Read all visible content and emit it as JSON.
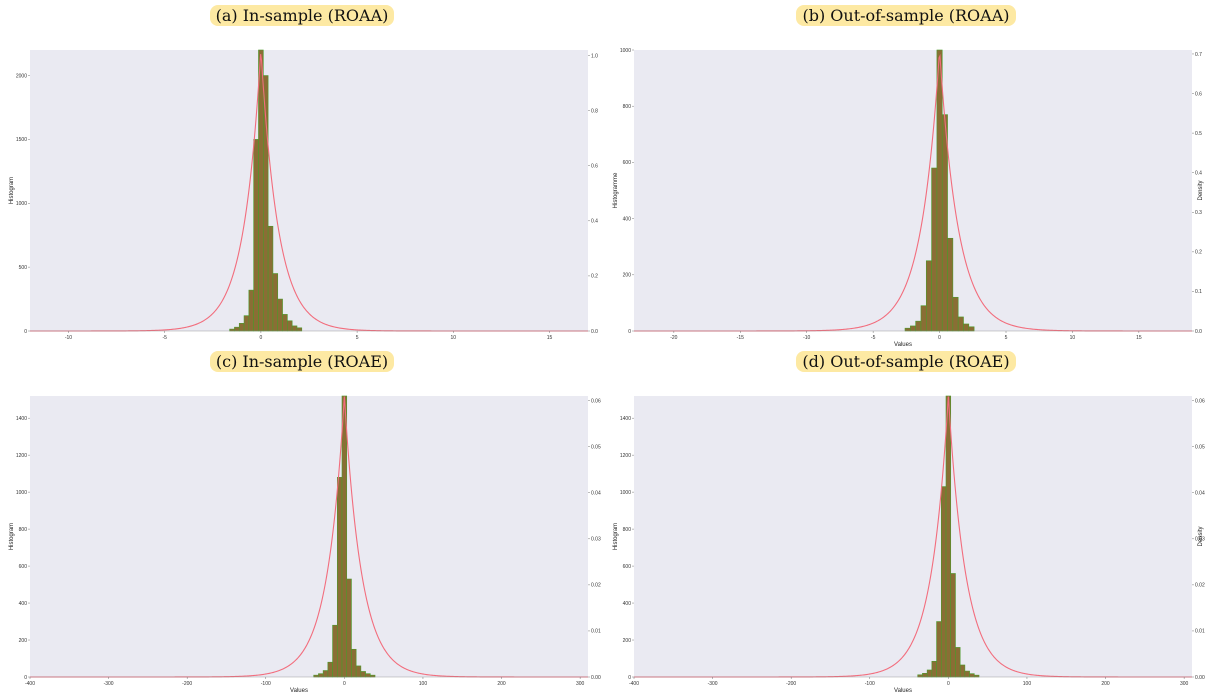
{
  "captions": [
    "(a) In-sample (ROAA)",
    "(b) Out-of-sample (ROAA)",
    "(c) In-sample (ROAE)",
    "(d) Out-of-sample (ROAE)"
  ],
  "colors": {
    "plot_bg": "#eaeaf2",
    "bar_fill": "#8a6e35",
    "bar_edge": "#4c9a2a",
    "kde": "#f26d7d"
  },
  "chart_data": [
    {
      "type": "bar",
      "title": "(a) In-sample (ROAA)",
      "xlabel": "",
      "ylabel": "Histogram",
      "y2label": "",
      "xlim": [
        -12,
        17
      ],
      "ylim": [
        0,
        2200
      ],
      "y2lim": [
        0,
        1.02
      ],
      "xticks": [
        -10,
        -5,
        0,
        5,
        10,
        15
      ],
      "yticks": [
        0,
        500,
        1000,
        1500,
        2000
      ],
      "y2ticks": [
        "0.0",
        "0.2",
        "0.4",
        "0.6",
        "0.8",
        "1.0"
      ],
      "center": 0,
      "bin_width": 0.25,
      "tail_scale": 0.9,
      "bins": [
        [
          -1.5,
          15
        ],
        [
          -1.25,
          30
        ],
        [
          -1.0,
          60
        ],
        [
          -0.75,
          120
        ],
        [
          -0.5,
          320
        ],
        [
          -0.25,
          1500
        ],
        [
          0,
          2200
        ],
        [
          0.25,
          2000
        ],
        [
          0.5,
          820
        ],
        [
          0.75,
          450
        ],
        [
          1.0,
          250
        ],
        [
          1.25,
          130
        ],
        [
          1.5,
          80
        ],
        [
          1.75,
          40
        ],
        [
          2.0,
          25
        ]
      ]
    },
    {
      "type": "bar",
      "title": "(b) Out-of-sample (ROAA)",
      "xlabel": "Values",
      "ylabel": "Histogramme",
      "y2label": "Density",
      "xlim": [
        -23,
        19
      ],
      "ylim": [
        0,
        1000
      ],
      "y2lim": [
        0,
        0.71
      ],
      "xticks": [
        -20,
        -15,
        -10,
        -5,
        0,
        5,
        10,
        15
      ],
      "yticks": [
        0,
        200,
        400,
        600,
        800,
        1000
      ],
      "y2ticks": [
        "0.0",
        "0.1",
        "0.2",
        "0.3",
        "0.4",
        "0.5",
        "0.6",
        "0.7"
      ],
      "center": 0,
      "bin_width": 0.4,
      "tail_scale": 1.4,
      "bins": [
        [
          -2.4,
          10
        ],
        [
          -2.0,
          18
        ],
        [
          -1.6,
          35
        ],
        [
          -1.2,
          90
        ],
        [
          -0.8,
          250
        ],
        [
          -0.4,
          580
        ],
        [
          0,
          1000
        ],
        [
          0.4,
          770
        ],
        [
          0.8,
          330
        ],
        [
          1.2,
          120
        ],
        [
          1.6,
          50
        ],
        [
          2.0,
          25
        ],
        [
          2.4,
          15
        ]
      ]
    },
    {
      "type": "bar",
      "title": "(c) In-sample (ROAE)",
      "xlabel": "Values",
      "ylabel": "Histogram",
      "y2label": "",
      "xlim": [
        -400,
        310
      ],
      "ylim": [
        0,
        1520
      ],
      "y2lim": [
        0,
        0.061
      ],
      "xticks": [
        -400,
        -300,
        -200,
        -100,
        0,
        100,
        200,
        300
      ],
      "yticks": [
        0,
        200,
        400,
        600,
        800,
        1000,
        1200,
        1400
      ],
      "y2ticks": [
        "0.00",
        "0.01",
        "0.02",
        "0.03",
        "0.04",
        "0.05",
        "0.06"
      ],
      "center": 0,
      "bin_width": 6,
      "tail_scale": 22,
      "bins": [
        [
          -36,
          10
        ],
        [
          -30,
          18
        ],
        [
          -24,
          35
        ],
        [
          -18,
          80
        ],
        [
          -12,
          280
        ],
        [
          -6,
          1080
        ],
        [
          0,
          1520
        ],
        [
          6,
          530
        ],
        [
          12,
          150
        ],
        [
          18,
          60
        ],
        [
          24,
          30
        ],
        [
          30,
          18
        ],
        [
          36,
          10
        ]
      ]
    },
    {
      "type": "bar",
      "title": "(d) Out-of-sample (ROAE)",
      "xlabel": "Values",
      "ylabel": "Histogram",
      "y2label": "Density",
      "xlim": [
        -400,
        310
      ],
      "ylim": [
        0,
        1520
      ],
      "y2lim": [
        0,
        0.061
      ],
      "xticks": [
        -400,
        -300,
        -200,
        -100,
        0,
        100,
        200,
        300
      ],
      "yticks": [
        0,
        200,
        400,
        600,
        800,
        1000,
        1200,
        1400
      ],
      "y2ticks": [
        "0.00",
        "0.01",
        "0.02",
        "0.03",
        "0.04",
        "0.05",
        "0.06"
      ],
      "center": 0,
      "bin_width": 6,
      "tail_scale": 22,
      "bins": [
        [
          -36,
          12
        ],
        [
          -30,
          20
        ],
        [
          -24,
          38
        ],
        [
          -18,
          85
        ],
        [
          -12,
          300
        ],
        [
          -6,
          1030
        ],
        [
          0,
          1520
        ],
        [
          6,
          560
        ],
        [
          12,
          160
        ],
        [
          18,
          65
        ],
        [
          24,
          32
        ],
        [
          30,
          18
        ],
        [
          36,
          10
        ]
      ]
    }
  ]
}
